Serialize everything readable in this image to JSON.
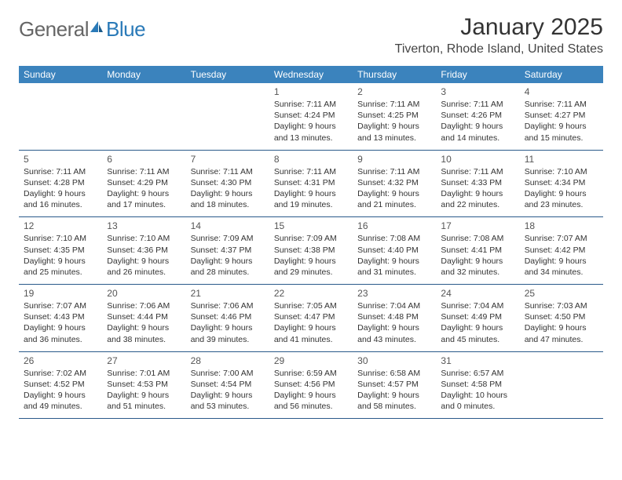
{
  "logo": {
    "part1": "General",
    "part2": "Blue"
  },
  "title": "January 2025",
  "location": "Tiverton, Rhode Island, United States",
  "colors": {
    "header_bg": "#3b83bd",
    "header_text": "#ffffff",
    "border": "#2a5a8a",
    "logo_gray": "#666666",
    "logo_blue": "#2a7ab8"
  },
  "day_headers": [
    "Sunday",
    "Monday",
    "Tuesday",
    "Wednesday",
    "Thursday",
    "Friday",
    "Saturday"
  ],
  "weeks": [
    [
      null,
      null,
      null,
      {
        "n": "1",
        "sr": "7:11 AM",
        "ss": "4:24 PM",
        "dl": "9 hours and 13 minutes."
      },
      {
        "n": "2",
        "sr": "7:11 AM",
        "ss": "4:25 PM",
        "dl": "9 hours and 13 minutes."
      },
      {
        "n": "3",
        "sr": "7:11 AM",
        "ss": "4:26 PM",
        "dl": "9 hours and 14 minutes."
      },
      {
        "n": "4",
        "sr": "7:11 AM",
        "ss": "4:27 PM",
        "dl": "9 hours and 15 minutes."
      }
    ],
    [
      {
        "n": "5",
        "sr": "7:11 AM",
        "ss": "4:28 PM",
        "dl": "9 hours and 16 minutes."
      },
      {
        "n": "6",
        "sr": "7:11 AM",
        "ss": "4:29 PM",
        "dl": "9 hours and 17 minutes."
      },
      {
        "n": "7",
        "sr": "7:11 AM",
        "ss": "4:30 PM",
        "dl": "9 hours and 18 minutes."
      },
      {
        "n": "8",
        "sr": "7:11 AM",
        "ss": "4:31 PM",
        "dl": "9 hours and 19 minutes."
      },
      {
        "n": "9",
        "sr": "7:11 AM",
        "ss": "4:32 PM",
        "dl": "9 hours and 21 minutes."
      },
      {
        "n": "10",
        "sr": "7:11 AM",
        "ss": "4:33 PM",
        "dl": "9 hours and 22 minutes."
      },
      {
        "n": "11",
        "sr": "7:10 AM",
        "ss": "4:34 PM",
        "dl": "9 hours and 23 minutes."
      }
    ],
    [
      {
        "n": "12",
        "sr": "7:10 AM",
        "ss": "4:35 PM",
        "dl": "9 hours and 25 minutes."
      },
      {
        "n": "13",
        "sr": "7:10 AM",
        "ss": "4:36 PM",
        "dl": "9 hours and 26 minutes."
      },
      {
        "n": "14",
        "sr": "7:09 AM",
        "ss": "4:37 PM",
        "dl": "9 hours and 28 minutes."
      },
      {
        "n": "15",
        "sr": "7:09 AM",
        "ss": "4:38 PM",
        "dl": "9 hours and 29 minutes."
      },
      {
        "n": "16",
        "sr": "7:08 AM",
        "ss": "4:40 PM",
        "dl": "9 hours and 31 minutes."
      },
      {
        "n": "17",
        "sr": "7:08 AM",
        "ss": "4:41 PM",
        "dl": "9 hours and 32 minutes."
      },
      {
        "n": "18",
        "sr": "7:07 AM",
        "ss": "4:42 PM",
        "dl": "9 hours and 34 minutes."
      }
    ],
    [
      {
        "n": "19",
        "sr": "7:07 AM",
        "ss": "4:43 PM",
        "dl": "9 hours and 36 minutes."
      },
      {
        "n": "20",
        "sr": "7:06 AM",
        "ss": "4:44 PM",
        "dl": "9 hours and 38 minutes."
      },
      {
        "n": "21",
        "sr": "7:06 AM",
        "ss": "4:46 PM",
        "dl": "9 hours and 39 minutes."
      },
      {
        "n": "22",
        "sr": "7:05 AM",
        "ss": "4:47 PM",
        "dl": "9 hours and 41 minutes."
      },
      {
        "n": "23",
        "sr": "7:04 AM",
        "ss": "4:48 PM",
        "dl": "9 hours and 43 minutes."
      },
      {
        "n": "24",
        "sr": "7:04 AM",
        "ss": "4:49 PM",
        "dl": "9 hours and 45 minutes."
      },
      {
        "n": "25",
        "sr": "7:03 AM",
        "ss": "4:50 PM",
        "dl": "9 hours and 47 minutes."
      }
    ],
    [
      {
        "n": "26",
        "sr": "7:02 AM",
        "ss": "4:52 PM",
        "dl": "9 hours and 49 minutes."
      },
      {
        "n": "27",
        "sr": "7:01 AM",
        "ss": "4:53 PM",
        "dl": "9 hours and 51 minutes."
      },
      {
        "n": "28",
        "sr": "7:00 AM",
        "ss": "4:54 PM",
        "dl": "9 hours and 53 minutes."
      },
      {
        "n": "29",
        "sr": "6:59 AM",
        "ss": "4:56 PM",
        "dl": "9 hours and 56 minutes."
      },
      {
        "n": "30",
        "sr": "6:58 AM",
        "ss": "4:57 PM",
        "dl": "9 hours and 58 minutes."
      },
      {
        "n": "31",
        "sr": "6:57 AM",
        "ss": "4:58 PM",
        "dl": "10 hours and 0 minutes."
      },
      null
    ]
  ],
  "labels": {
    "sunrise": "Sunrise:",
    "sunset": "Sunset:",
    "daylight": "Daylight:"
  }
}
